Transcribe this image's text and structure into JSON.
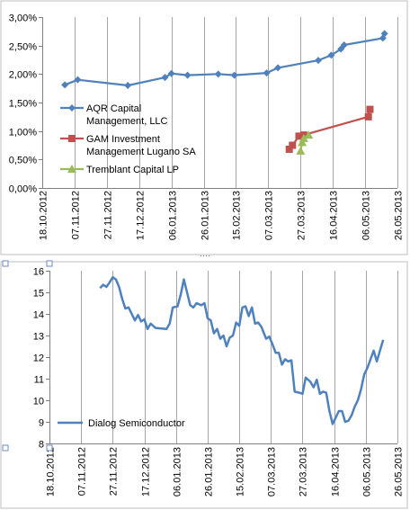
{
  "chart_data": [
    {
      "type": "line",
      "title": "",
      "xlabel": "",
      "ylabel": "",
      "y_tick_labels": [
        "0,00%",
        "0,50%",
        "1,00%",
        "1,50%",
        "2,00%",
        "2,50%",
        "3,00%"
      ],
      "y_tick_values": [
        0,
        0.5,
        1.0,
        1.5,
        2.0,
        2.5,
        3.0
      ],
      "ylim": [
        0,
        3.0
      ],
      "x_tick_labels": [
        "18.10.2012",
        "07.11.2012",
        "27.11.2012",
        "17.12.2012",
        "06.01.2013",
        "26.01.2013",
        "15.02.2013",
        "07.03.2013",
        "27.03.2013",
        "16.04.2013",
        "06.05.2013",
        "26.05.2013"
      ],
      "x_tick_values": [
        "2012-10-18",
        "2012-11-07",
        "2012-11-27",
        "2012-12-17",
        "2013-01-06",
        "2013-01-26",
        "2013-02-15",
        "2013-03-07",
        "2013-03-27",
        "2013-04-16",
        "2013-05-06",
        "2013-05-26"
      ],
      "xlim": [
        "2012-10-18",
        "2013-05-26"
      ],
      "grid": "vertical",
      "legend_position": "right",
      "series": [
        {
          "name": "AQR Capital Management, LLC",
          "legend_lines": [
            "AQR Capital",
            "Management, LLC"
          ],
          "color": "#4f81bd",
          "marker": "diamond",
          "points": [
            [
              "2012-11-01",
              1.81
            ],
            [
              "2012-11-09",
              1.9
            ],
            [
              "2012-12-10",
              1.8
            ],
            [
              "2013-01-02",
              1.94
            ],
            [
              "2013-01-06",
              2.01
            ],
            [
              "2013-01-16",
              1.98
            ],
            [
              "2013-02-04",
              2.0
            ],
            [
              "2013-02-14",
              1.98
            ],
            [
              "2013-03-06",
              2.02
            ],
            [
              "2013-03-13",
              2.11
            ],
            [
              "2013-04-07",
              2.24
            ],
            [
              "2013-04-15",
              2.33
            ],
            [
              "2013-04-21",
              2.44
            ],
            [
              "2013-04-23",
              2.51
            ],
            [
              "2013-05-17",
              2.63
            ],
            [
              "2013-05-18",
              2.71
            ]
          ]
        },
        {
          "name": "GAM Investment Management Lugano SA",
          "legend_lines": [
            "GAM Investment",
            "Management Lugano SA"
          ],
          "color": "#c0504d",
          "marker": "square",
          "points": [
            [
              "2013-03-20",
              0.68
            ],
            [
              "2013-03-22",
              0.75
            ],
            [
              "2013-03-26",
              0.91
            ],
            [
              "2013-03-29",
              0.93
            ],
            [
              "2013-05-08",
              1.25
            ],
            [
              "2013-05-09",
              1.38
            ]
          ]
        },
        {
          "name": "Tremblant Capital LP",
          "legend_lines": [
            "Tremblant Capital LP"
          ],
          "color": "#9bbb59",
          "marker": "triangle",
          "points": [
            [
              "2013-03-27",
              0.65
            ],
            [
              "2013-03-28",
              0.8
            ],
            [
              "2013-03-29",
              0.87
            ],
            [
              "2013-04-01",
              0.93
            ]
          ]
        }
      ]
    },
    {
      "type": "line",
      "title": "",
      "xlabel": "",
      "ylabel": "",
      "y_tick_labels": [
        "8",
        "9",
        "10",
        "11",
        "12",
        "13",
        "14",
        "15",
        "16"
      ],
      "y_tick_values": [
        8,
        9,
        10,
        11,
        12,
        13,
        14,
        15,
        16
      ],
      "ylim": [
        8,
        16
      ],
      "x_tick_labels": [
        "18.10.2012",
        "07.11.2012",
        "27.11.2012",
        "17.12.2012",
        "06.01.2013",
        "26.01.2013",
        "15.02.2013",
        "07.03.2013",
        "27.03.2013",
        "16.04.2013",
        "06.05.2013",
        "26.05.2013"
      ],
      "x_tick_values": [
        "2012-10-18",
        "2012-11-07",
        "2012-11-27",
        "2012-12-17",
        "2013-01-06",
        "2013-01-26",
        "2013-02-15",
        "2013-03-07",
        "2013-03-27",
        "2013-04-16",
        "2013-05-06",
        "2013-05-26"
      ],
      "xlim": [
        "2012-10-18",
        "2013-05-26"
      ],
      "grid": "vertical",
      "legend_position": "bottom-left",
      "series": [
        {
          "name": "Dialog Semiconductor",
          "color": "#4f81bd",
          "marker": "none",
          "points": [
            [
              "2012-11-19",
              15.2
            ],
            [
              "2012-11-21",
              15.35
            ],
            [
              "2012-11-23",
              15.25
            ],
            [
              "2012-11-25",
              15.45
            ],
            [
              "2012-11-27",
              15.7
            ],
            [
              "2012-11-29",
              15.6
            ],
            [
              "2012-12-01",
              15.25
            ],
            [
              "2012-12-03",
              14.7
            ],
            [
              "2012-12-05",
              14.25
            ],
            [
              "2012-12-07",
              14.3
            ],
            [
              "2012-12-09",
              14.0
            ],
            [
              "2012-12-11",
              13.7
            ],
            [
              "2012-12-13",
              13.95
            ],
            [
              "2012-12-15",
              13.65
            ],
            [
              "2012-12-17",
              13.75
            ],
            [
              "2012-12-19",
              13.3
            ],
            [
              "2012-12-21",
              13.55
            ],
            [
              "2012-12-24",
              13.35
            ],
            [
              "2012-12-31",
              13.3
            ],
            [
              "2013-01-02",
              13.55
            ],
            [
              "2013-01-04",
              14.3
            ],
            [
              "2013-01-07",
              14.35
            ],
            [
              "2013-01-09",
              14.9
            ],
            [
              "2013-01-11",
              15.6
            ],
            [
              "2013-01-13",
              15.0
            ],
            [
              "2013-01-15",
              14.4
            ],
            [
              "2013-01-17",
              14.3
            ],
            [
              "2013-01-19",
              14.5
            ],
            [
              "2013-01-22",
              14.4
            ],
            [
              "2013-01-24",
              14.5
            ],
            [
              "2013-01-26",
              13.8
            ],
            [
              "2013-01-28",
              13.7
            ],
            [
              "2013-01-30",
              13.1
            ],
            [
              "2013-02-01",
              13.3
            ],
            [
              "2013-02-03",
              12.85
            ],
            [
              "2013-02-05",
              13.0
            ],
            [
              "2013-02-07",
              12.5
            ],
            [
              "2013-02-09",
              12.9
            ],
            [
              "2013-02-11",
              13.0
            ],
            [
              "2013-02-13",
              13.6
            ],
            [
              "2013-02-15",
              13.45
            ],
            [
              "2013-02-17",
              14.3
            ],
            [
              "2013-02-19",
              14.35
            ],
            [
              "2013-02-21",
              13.9
            ],
            [
              "2013-02-23",
              14.3
            ],
            [
              "2013-02-25",
              13.55
            ],
            [
              "2013-02-27",
              13.6
            ],
            [
              "2013-03-01",
              13.4
            ],
            [
              "2013-03-04",
              12.85
            ],
            [
              "2013-03-06",
              12.95
            ],
            [
              "2013-03-08",
              12.6
            ],
            [
              "2013-03-10",
              12.2
            ],
            [
              "2013-03-12",
              12.2
            ],
            [
              "2013-03-14",
              11.65
            ],
            [
              "2013-03-16",
              11.9
            ],
            [
              "2013-03-18",
              11.8
            ],
            [
              "2013-03-20",
              11.85
            ],
            [
              "2013-03-22",
              10.4
            ],
            [
              "2013-03-25",
              10.35
            ],
            [
              "2013-03-27",
              10.3
            ],
            [
              "2013-03-29",
              11.05
            ],
            [
              "2013-04-01",
              10.85
            ],
            [
              "2013-04-03",
              10.6
            ],
            [
              "2013-04-05",
              10.95
            ],
            [
              "2013-04-07",
              10.3
            ],
            [
              "2013-04-09",
              10.4
            ],
            [
              "2013-04-11",
              10.35
            ],
            [
              "2013-04-13",
              9.5
            ],
            [
              "2013-04-15",
              8.9
            ],
            [
              "2013-04-17",
              9.2
            ],
            [
              "2013-04-19",
              9.5
            ],
            [
              "2013-04-21",
              9.5
            ],
            [
              "2013-04-23",
              9.0
            ],
            [
              "2013-04-25",
              9.05
            ],
            [
              "2013-04-27",
              9.3
            ],
            [
              "2013-04-29",
              9.7
            ],
            [
              "2013-05-01",
              10.0
            ],
            [
              "2013-05-03",
              10.5
            ],
            [
              "2013-05-05",
              11.2
            ],
            [
              "2013-05-07",
              11.5
            ],
            [
              "2013-05-09",
              11.9
            ],
            [
              "2013-05-11",
              12.3
            ],
            [
              "2013-05-13",
              11.8
            ],
            [
              "2013-05-15",
              12.3
            ],
            [
              "2013-05-17",
              12.8
            ]
          ]
        }
      ]
    }
  ],
  "divider_handle_label": "····"
}
